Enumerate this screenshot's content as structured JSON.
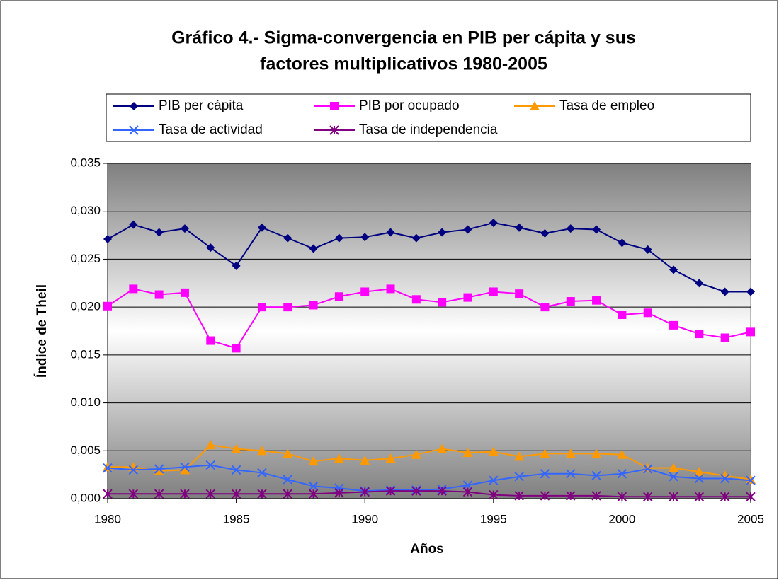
{
  "chart_data": {
    "type": "line",
    "title": [
      "Gráfico 4.- Sigma-convergencia en PIB per cápita y sus",
      "factores multiplicativos 1980-2005"
    ],
    "xlabel": "Años",
    "ylabel": "Índice de Theil",
    "x": [
      1980,
      1981,
      1982,
      1983,
      1984,
      1985,
      1986,
      1987,
      1988,
      1989,
      1990,
      1991,
      1992,
      1993,
      1994,
      1995,
      1996,
      1997,
      1998,
      1999,
      2000,
      2001,
      2002,
      2003,
      2004,
      2005
    ],
    "xlim": [
      1980,
      2005
    ],
    "xticks": [
      1980,
      1985,
      1990,
      1995,
      2000,
      2005
    ],
    "ylim": [
      0,
      0.035
    ],
    "yticks": [
      {
        "value": 0,
        "label": "0,000"
      },
      {
        "value": 0.005,
        "label": "0,005"
      },
      {
        "value": 0.01,
        "label": "0,010"
      },
      {
        "value": 0.015,
        "label": "0,015"
      },
      {
        "value": 0.02,
        "label": "0,020"
      },
      {
        "value": 0.025,
        "label": "0,025"
      },
      {
        "value": 0.03,
        "label": "0,030"
      },
      {
        "value": 0.035,
        "label": "0,035"
      }
    ],
    "grid": true,
    "legend": "top",
    "series": [
      {
        "name": "PIB per cápita",
        "color": "#000080",
        "marker": "diamond",
        "values": [
          0.0271,
          0.0286,
          0.0278,
          0.0282,
          0.0262,
          0.0243,
          0.0283,
          0.0272,
          0.0261,
          0.0272,
          0.0273,
          0.0278,
          0.0272,
          0.0278,
          0.0281,
          0.0288,
          0.0283,
          0.0277,
          0.0282,
          0.0281,
          0.0267,
          0.026,
          0.0239,
          0.0225,
          0.0216,
          0.0216
        ]
      },
      {
        "name": "PIB por ocupado",
        "color": "#ff00ff",
        "marker": "square",
        "values": [
          0.0201,
          0.0219,
          0.0213,
          0.0215,
          0.0165,
          0.0157,
          0.02,
          0.02,
          0.0202,
          0.0211,
          0.0216,
          0.0219,
          0.0208,
          0.0205,
          0.021,
          0.0216,
          0.0214,
          0.02,
          0.0206,
          0.0207,
          0.0192,
          0.0194,
          0.0181,
          0.0172,
          0.0168,
          0.0174
        ]
      },
      {
        "name": "Tasa de empleo",
        "color": "#ff9900",
        "marker": "triangle",
        "values": [
          0.0033,
          0.0033,
          0.0029,
          0.003,
          0.0056,
          0.0052,
          0.005,
          0.0047,
          0.0039,
          0.0042,
          0.004,
          0.0042,
          0.0046,
          0.0052,
          0.0048,
          0.0049,
          0.0044,
          0.0047,
          0.0047,
          0.0047,
          0.0046,
          0.0032,
          0.0032,
          0.0028,
          0.0024,
          0.002
        ]
      },
      {
        "name": "Tasa de actividad",
        "color": "#3366ff",
        "marker": "x",
        "values": [
          0.0032,
          0.003,
          0.0031,
          0.0033,
          0.0035,
          0.003,
          0.0027,
          0.002,
          0.0013,
          0.0011,
          0.0008,
          0.0009,
          0.0009,
          0.001,
          0.0014,
          0.0019,
          0.0023,
          0.0026,
          0.0026,
          0.0024,
          0.0026,
          0.0031,
          0.0023,
          0.0021,
          0.0021,
          0.0019
        ]
      },
      {
        "name": "Tasa de independencia",
        "color": "#800080",
        "marker": "asterisk",
        "values": [
          0.0005,
          0.0005,
          0.0005,
          0.0005,
          0.0005,
          0.0005,
          0.0005,
          0.0005,
          0.0005,
          0.0006,
          0.0007,
          0.0008,
          0.0008,
          0.0008,
          0.0007,
          0.0004,
          0.0003,
          0.0003,
          0.0003,
          0.0003,
          0.0002,
          0.0002,
          0.0002,
          0.0002,
          0.0002,
          0.0002
        ]
      }
    ]
  }
}
